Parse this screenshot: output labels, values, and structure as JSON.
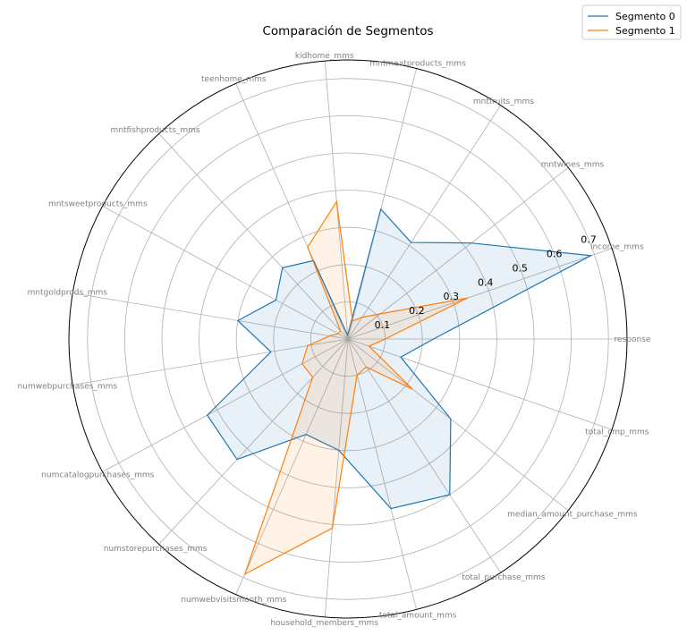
{
  "chart_data": {
    "type": "radar",
    "title": "Comparación de Segmentos",
    "axes": [
      "response",
      "income_mms",
      "mntwines_mms",
      "mntfruits_mms",
      "mntmeatproducts_mms",
      "kidhome_mms",
      "teenhome_mms",
      "mntfishproducts_mms",
      "mntsweetproducts_mms",
      "mntgoldprods_mms",
      "numwebpurchases_mms",
      "numcatalogpurchases_mms",
      "numstorepurchases_mms",
      "numwebvisitsmonth_mms",
      "household_members_mms",
      "total_amount_mms",
      "total_purchase_mms",
      "median_amount_purchase_mms",
      "total_cmp_mms"
    ],
    "ring_ticks": [
      "0.1",
      "0.2",
      "0.3",
      "0.4",
      "0.5",
      "0.6",
      "0.7"
    ],
    "ring_values": [
      0.1,
      0.2,
      0.3,
      0.4,
      0.5,
      0.6,
      0.7
    ],
    "rmax": 0.75,
    "series": [
      {
        "name": "Segmento 0",
        "color": "#1f77b4",
        "values": [
          0.23,
          0.69,
          0.42,
          0.31,
          0.36,
          0.01,
          0.23,
          0.26,
          0.22,
          0.3,
          0.21,
          0.43,
          0.44,
          0.28,
          0.3,
          0.47,
          0.5,
          0.35,
          0.15
        ]
      },
      {
        "name": "Segmento 1",
        "color": "#ff7f0e",
        "values": [
          0.1,
          0.34,
          0.11,
          0.07,
          0.05,
          0.37,
          0.27,
          0.03,
          0.03,
          0.05,
          0.11,
          0.14,
          0.14,
          0.69,
          0.51,
          0.1,
          0.09,
          0.22,
          0.06
        ]
      }
    ],
    "legend_position": "top-right",
    "grid": true
  }
}
